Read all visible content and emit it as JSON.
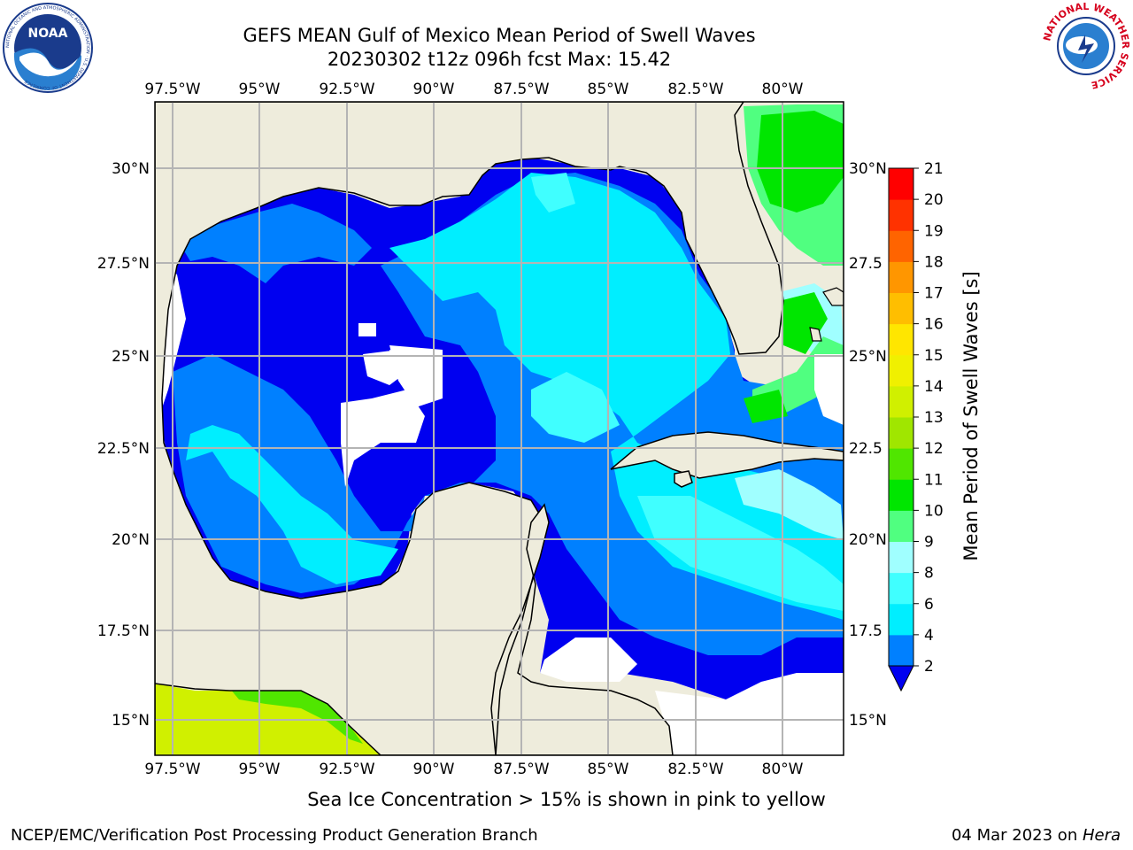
{
  "header": {
    "title_line1": "GEFS MEAN Gulf of Mexico Mean Period of Swell Waves",
    "title_line2": "20230302 t12z 096h fcst   Max: 15.42"
  },
  "logos": {
    "left": {
      "text": "NOAA",
      "ring_text": "NATIONAL OCEANIC AND ATMOSPHERIC ADMINISTRATION · U.S. DEPARTMENT OF COMMERCE"
    },
    "right": {
      "ring_text": "NATIONAL WEATHER SERVICE"
    }
  },
  "map": {
    "lon_ticks": [
      "97.5°W",
      "95°W",
      "92.5°W",
      "90°W",
      "87.5°W",
      "85°W",
      "82.5°W",
      "80°W"
    ],
    "lat_ticks": [
      "30°N",
      "27.5°N",
      "25°N",
      "22.5°N",
      "20°N",
      "17.5°N",
      "15°N"
    ],
    "lat_ticks_right": [
      "30°N",
      "27.5",
      "25°N",
      "22.5",
      "20°N",
      "17.5",
      "15°N"
    ],
    "colors": {
      "land": "#eeecdc",
      "no_data": "#ffffff",
      "grid": "#b4b4b4",
      "coast": "#000000"
    }
  },
  "colorbar": {
    "label": "Mean Period of Swell Waves [s]",
    "ticks": [
      "2",
      "4",
      "6",
      "8",
      "9",
      "10",
      "11",
      "12",
      "13",
      "14",
      "15",
      "16",
      "17",
      "18",
      "19",
      "20",
      "21"
    ],
    "colors": [
      "#0000f0",
      "#0080ff",
      "#00eeff",
      "#40ffff",
      "#a0ffff",
      "#50ff80",
      "#00e600",
      "#50e600",
      "#a0e600",
      "#d0f000",
      "#f0f000",
      "#ffe600",
      "#ffbe00",
      "#ff9600",
      "#ff6400",
      "#ff3200",
      "#ff0000"
    ],
    "extend": "min"
  },
  "footer": {
    "ice_note": "Sea Ice Concentration > 15% is shown in pink to yellow",
    "credit": "NCEP/EMC/Verification Post Processing Product Generation Branch",
    "date": "04 Mar 2023 on ",
    "machine": "Hera"
  }
}
